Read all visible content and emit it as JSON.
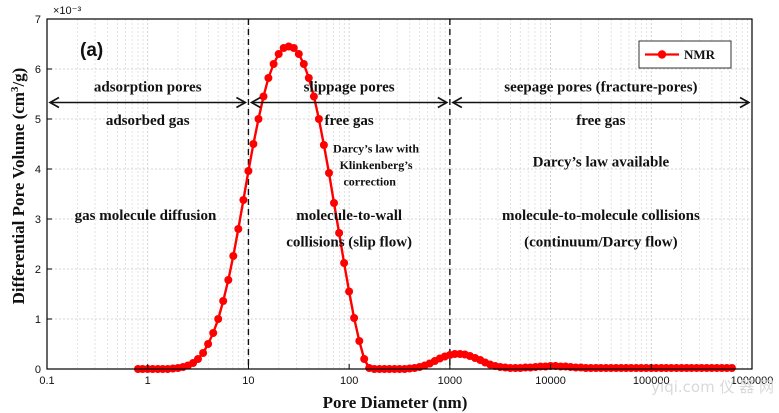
{
  "chart_data": {
    "type": "line",
    "panel_label": "(a)",
    "xlabel": "Pore Diameter (nm)",
    "ylabel_text": "Differential Pore Volume (cm",
    "ylabel_sup": "3",
    "ylabel_tail": "/g)",
    "y_scale_label": "×10⁻³",
    "x_scale": "log",
    "xlim": [
      0.1,
      1000000
    ],
    "ylim": [
      0,
      7
    ],
    "x_ticks": [
      0.1,
      1,
      10,
      100,
      1000,
      10000,
      100000,
      1000000
    ],
    "x_tick_labels": [
      "0.1",
      "1",
      "10",
      "100",
      "1000",
      "10000",
      "100000",
      "1000000"
    ],
    "y_ticks": [
      0,
      1,
      2,
      3,
      4,
      5,
      6,
      7
    ],
    "y_tick_labels": [
      "0",
      "1",
      "2",
      "3",
      "4",
      "5",
      "6",
      "7"
    ],
    "grid": true,
    "legend_position": "top-right",
    "series": [
      {
        "name": "NMR",
        "color": "#ff0000",
        "marker": "circle",
        "x": [
          0.8,
          0.89,
          1.0,
          1.12,
          1.26,
          1.41,
          1.58,
          1.78,
          2.0,
          2.24,
          2.51,
          2.82,
          3.16,
          3.55,
          3.98,
          4.47,
          5.01,
          5.62,
          6.31,
          7.08,
          7.94,
          8.91,
          10.0,
          11.2,
          12.6,
          14.1,
          15.8,
          17.8,
          20.0,
          22.4,
          25.1,
          28.2,
          31.6,
          35.5,
          39.8,
          44.7,
          50.1,
          56.2,
          63.1,
          70.8,
          79.4,
          89.1,
          100,
          112,
          126,
          141,
          158,
          178,
          200,
          224,
          251,
          282,
          316,
          355,
          398,
          447,
          501,
          562,
          631,
          708,
          794,
          891,
          1000,
          1120,
          1260,
          1410,
          1580,
          1780,
          2000,
          2240,
          2510,
          2820,
          3160,
          3550,
          3980,
          4470,
          5010,
          5620,
          6310,
          7080,
          7940,
          8910,
          10000,
          11200,
          12600,
          14100,
          15800,
          17800,
          20000,
          22400,
          25100,
          28200,
          31600,
          35500,
          39800,
          44700,
          50100,
          56200,
          63100,
          70800,
          79400,
          89100,
          100000,
          112000,
          126000,
          141000,
          158000,
          178000,
          200000,
          224000,
          251000,
          282000,
          316000,
          355000,
          398000,
          447000,
          501000,
          562000,
          631000
        ],
        "y": [
          0.0,
          0.0,
          0.0,
          0.0,
          0.0,
          0.0,
          0.0,
          0.01,
          0.02,
          0.04,
          0.07,
          0.12,
          0.2,
          0.32,
          0.5,
          0.72,
          1.0,
          1.36,
          1.78,
          2.26,
          2.8,
          3.38,
          3.96,
          4.5,
          5.0,
          5.45,
          5.82,
          6.1,
          6.3,
          6.42,
          6.45,
          6.42,
          6.3,
          6.1,
          5.82,
          5.45,
          5.0,
          4.48,
          3.92,
          3.32,
          2.72,
          2.12,
          1.55,
          1.02,
          0.56,
          0.2,
          0.02,
          0.0,
          0.0,
          0.0,
          0.0,
          0.0,
          0.0,
          0.0,
          0.01,
          0.02,
          0.04,
          0.07,
          0.11,
          0.16,
          0.21,
          0.25,
          0.28,
          0.3,
          0.3,
          0.29,
          0.26,
          0.22,
          0.18,
          0.13,
          0.09,
          0.06,
          0.04,
          0.03,
          0.02,
          0.02,
          0.02,
          0.03,
          0.03,
          0.04,
          0.05,
          0.05,
          0.06,
          0.06,
          0.05,
          0.05,
          0.04,
          0.03,
          0.03,
          0.02,
          0.02,
          0.02,
          0.02,
          0.02,
          0.02,
          0.02,
          0.02,
          0.02,
          0.02,
          0.02,
          0.02,
          0.02,
          0.02,
          0.02,
          0.02,
          0.02,
          0.02,
          0.02,
          0.02,
          0.02,
          0.02,
          0.02,
          0.02,
          0.02,
          0.02,
          0.02,
          0.02,
          0.02,
          0.02
        ]
      }
    ],
    "vlines": [
      10,
      1000
    ],
    "arrows": [
      {
        "from": 0.1,
        "to": 10,
        "y": 5.33
      },
      {
        "from": 10,
        "to": 1000,
        "y": 5.33
      },
      {
        "from": 1000,
        "to": 1000000,
        "y": 5.33
      }
    ],
    "annotations": [
      {
        "text": "adsorption pores",
        "x": 1.0,
        "y": 5.55,
        "size": 15
      },
      {
        "text": "adsorbed gas",
        "x": 1.0,
        "y": 4.88,
        "size": 15
      },
      {
        "text": "gas molecule diffusion",
        "x": 0.95,
        "y": 2.98,
        "size": 15
      },
      {
        "text": "slippage pores",
        "x": 100,
        "y": 5.55,
        "size": 15
      },
      {
        "text": "free gas",
        "x": 100,
        "y": 4.88,
        "size": 15
      },
      {
        "text": "Darcy’s law with",
        "x": 185,
        "y": 4.33,
        "size": 12,
        "anchor": "middle"
      },
      {
        "text": "Klinkenberg’s",
        "x": 185,
        "y": 4.0,
        "size": 12,
        "anchor": "middle"
      },
      {
        "text": "correction",
        "x": 160,
        "y": 3.67,
        "size": 12,
        "anchor": "middle"
      },
      {
        "text": "molecule-to-wall",
        "x": 100,
        "y": 2.98,
        "size": 15
      },
      {
        "text": "collisions (slip flow)",
        "x": 100,
        "y": 2.45,
        "size": 15
      },
      {
        "text": "seepage pores (fracture-pores)",
        "x": 31600,
        "y": 5.55,
        "size": 15
      },
      {
        "text": "free gas",
        "x": 31600,
        "y": 4.88,
        "size": 15
      },
      {
        "text": "Darcy’s law available",
        "x": 31600,
        "y": 4.05,
        "size": 15
      },
      {
        "text": "molecule-to-molecule collisions",
        "x": 31600,
        "y": 2.98,
        "size": 15
      },
      {
        "text": "(continuum/Darcy flow)",
        "x": 31600,
        "y": 2.45,
        "size": 15
      }
    ]
  },
  "watermark": "yiqi.com 仪 器 网"
}
